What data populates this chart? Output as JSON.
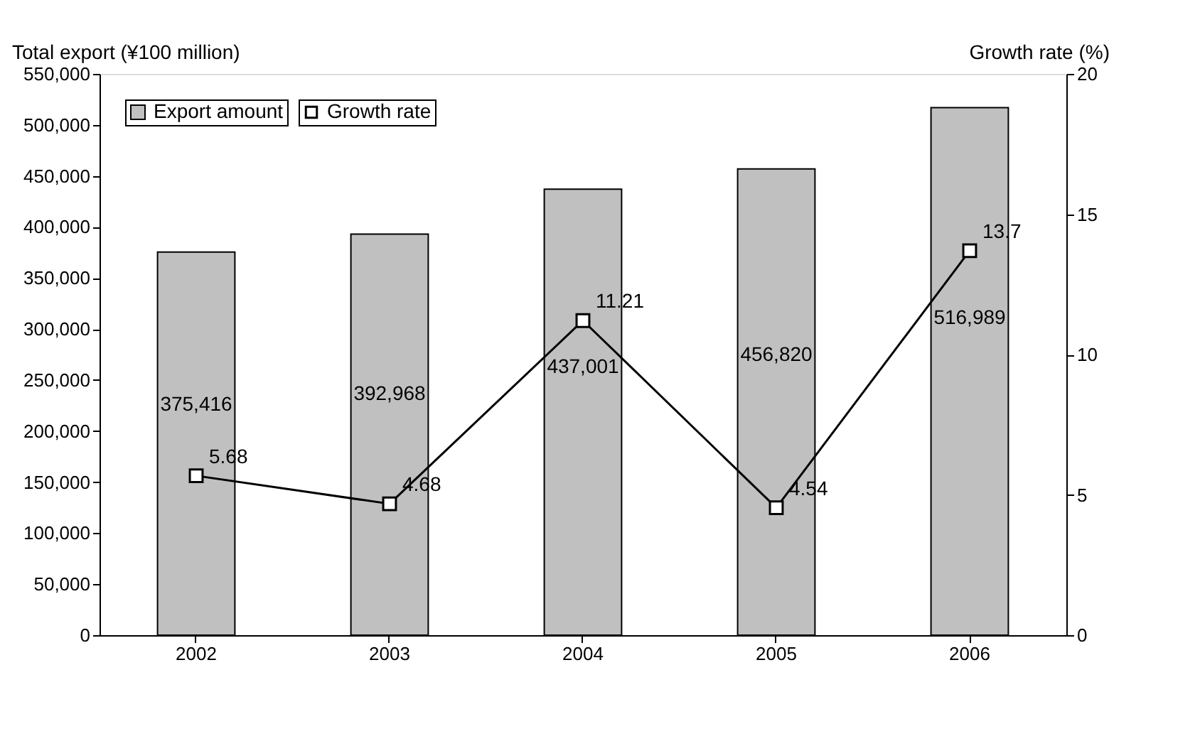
{
  "chart_data": {
    "type": "bar",
    "categories": [
      "2002",
      "2003",
      "2004",
      "2005",
      "2006"
    ],
    "series": [
      {
        "name": "Export amount",
        "color": "#c0c0c0",
        "values": [
          375416,
          392968,
          437001,
          456820,
          516989
        ],
        "value_labels": [
          "375,416",
          "392,968",
          "437,001",
          "456,820",
          "516,989"
        ]
      },
      {
        "name": "Growth rate",
        "type": "line",
        "axis": "y2",
        "color": "#000000",
        "marker": "square",
        "line_style": "solid",
        "values": [
          5.68,
          4.68,
          11.21,
          4.54,
          13.7
        ]
      }
    ],
    "ylabel": "Total export (¥100 million)",
    "y2label": "Growth rate (%)",
    "ylim": [
      0,
      550000
    ],
    "yticks": [
      {
        "value": 0,
        "label": "0"
      },
      {
        "value": 50000,
        "label": "50,000"
      },
      {
        "value": 100000,
        "label": "100,000"
      },
      {
        "value": 150000,
        "label": "150,000"
      },
      {
        "value": 200000,
        "label": "200,000"
      },
      {
        "value": 250000,
        "label": "250,000"
      },
      {
        "value": 300000,
        "label": "300,000"
      },
      {
        "value": 350000,
        "label": "350,000"
      },
      {
        "value": 400000,
        "label": "400,000"
      },
      {
        "value": 450000,
        "label": "450,000"
      },
      {
        "value": 500000,
        "label": "500,000"
      },
      {
        "value": 550000,
        "label": "550,000"
      }
    ],
    "y2lim": [
      0,
      20
    ],
    "y2ticks": [
      0,
      5,
      10,
      15,
      20
    ],
    "data_labels": true,
    "legend": "top left",
    "grid": false
  }
}
